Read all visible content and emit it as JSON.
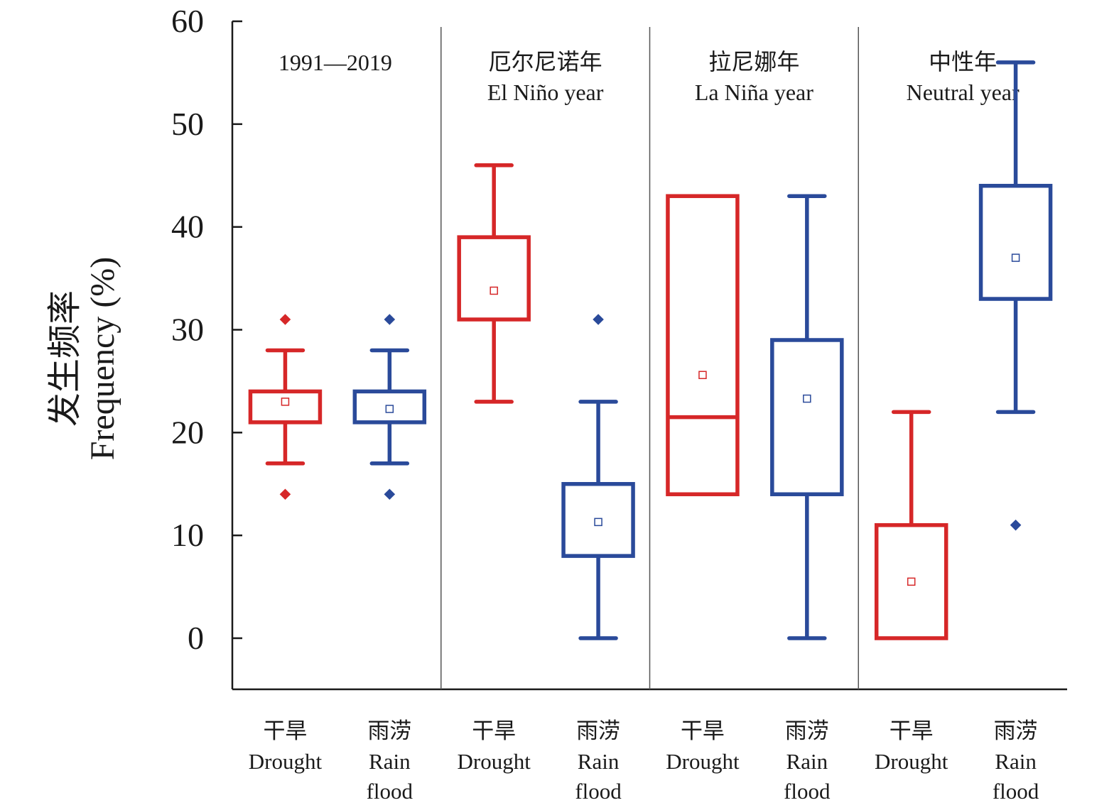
{
  "colors": {
    "drought": "#d62728",
    "rain_flood": "#2a4a9a",
    "axis": "#1a1a1a",
    "divider": "#555555"
  },
  "chart_data": {
    "type": "box",
    "ylabel_cn": "发生频率",
    "ylabel_en": "Frequency (%)",
    "ylim": [
      -5,
      60
    ],
    "yticks": [
      0,
      10,
      20,
      30,
      40,
      50,
      60
    ],
    "grid": false,
    "panels": [
      {
        "title_cn": "",
        "title_en": "1991—2019",
        "boxes": [
          {
            "label_cn": "干旱",
            "label_en": "Drought",
            "series": "drought",
            "whisker_low": 17,
            "q1": 21,
            "median": 24,
            "q3": 24,
            "whisker_high": 28,
            "mean": 23,
            "outliers": [
              31,
              14
            ]
          },
          {
            "label_cn": "雨涝",
            "label_en": "Rain flood",
            "series": "rain_flood",
            "whisker_low": 17,
            "q1": 21,
            "median": 24,
            "q3": 24,
            "whisker_high": 28,
            "mean": 22.3,
            "outliers": [
              31,
              14
            ]
          }
        ]
      },
      {
        "title_cn": "厄尔尼诺年",
        "title_en": "El Niño year",
        "boxes": [
          {
            "label_cn": "干旱",
            "label_en": "Drought",
            "series": "drought",
            "whisker_low": 23,
            "q1": 31,
            "median": 39,
            "q3": 39,
            "whisker_high": 46,
            "mean": 33.8,
            "outliers": []
          },
          {
            "label_cn": "雨涝",
            "label_en": "Rain flood",
            "series": "rain_flood",
            "whisker_low": 0,
            "q1": 8,
            "median": 15,
            "q3": 15,
            "whisker_high": 23,
            "mean": 11.3,
            "outliers": [
              31
            ]
          }
        ]
      },
      {
        "title_cn": "拉尼娜年",
        "title_en": "La Niña year",
        "boxes": [
          {
            "label_cn": "干旱",
            "label_en": "Drought",
            "series": "drought",
            "whisker_low": 14,
            "q1": 14,
            "median": 21.5,
            "q3": 43,
            "whisker_high": 43,
            "mean": 25.6,
            "outliers": []
          },
          {
            "label_cn": "雨涝",
            "label_en": "Rain flood",
            "series": "rain_flood",
            "whisker_low": 0,
            "q1": 14,
            "median": 29,
            "q3": 29,
            "whisker_high": 43,
            "mean": 23.3,
            "outliers": []
          }
        ]
      },
      {
        "title_cn": "中性年",
        "title_en": "Neutral year",
        "boxes": [
          {
            "label_cn": "干旱",
            "label_en": "Drought",
            "series": "drought",
            "whisker_low": 0,
            "q1": 0,
            "median": 11,
            "q3": 11,
            "whisker_high": 22,
            "mean": 5.5,
            "outliers": []
          },
          {
            "label_cn": "雨涝",
            "label_en": "Rain flood",
            "series": "rain_flood",
            "whisker_low": 22,
            "q1": 33,
            "median": 44,
            "q3": 44,
            "whisker_high": 56,
            "mean": 37,
            "outliers": [
              11
            ]
          }
        ]
      }
    ]
  }
}
